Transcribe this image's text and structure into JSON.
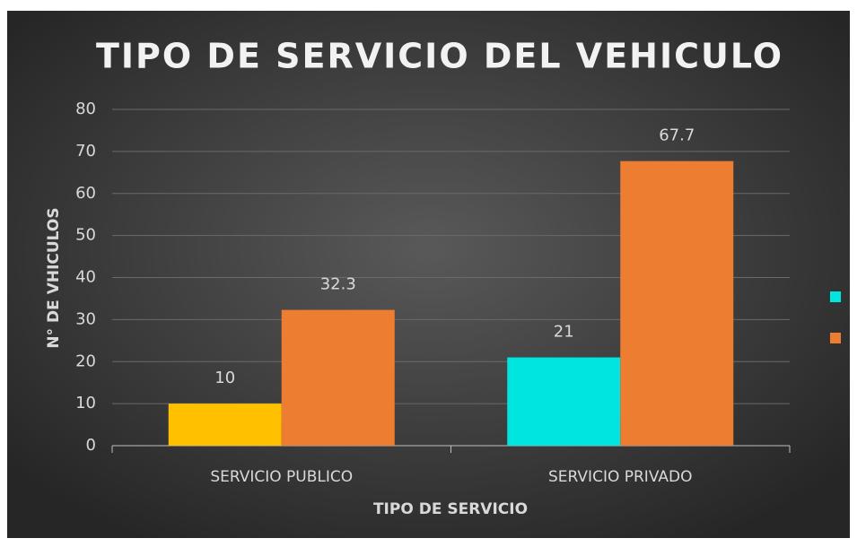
{
  "chart_data": {
    "type": "bar",
    "title": "TIPO DE SERVICIO DEL VEHICULO",
    "x_label": "TIPO DE SERVICIO",
    "y_label": "N° DE VHICULOS",
    "categories": [
      "SERVICIO PUBLICO",
      "SERVICIO PRIVADO"
    ],
    "series": [
      {
        "color": "#00e5e0",
        "colors": [
          "#ffc000",
          "#00e5e0"
        ],
        "values": [
          10,
          21
        ]
      },
      {
        "color": "#ed7d31",
        "values": [
          32.3,
          67.7
        ]
      }
    ],
    "ylim": [
      0,
      80
    ],
    "yticks": [
      0,
      10,
      20,
      30,
      40,
      50,
      60,
      70,
      80
    ],
    "grid": true,
    "legend": "right"
  }
}
